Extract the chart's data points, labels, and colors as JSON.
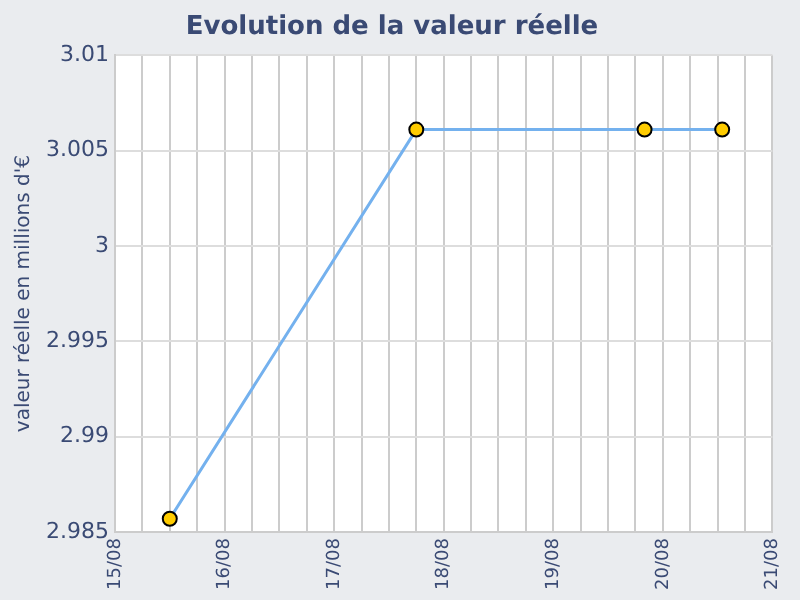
{
  "chart_data": {
    "type": "line",
    "title": "Evolution de la valeur réelle",
    "ylabel": "valeur réelle en millions d'€",
    "x": [
      "--08-15T12:00",
      "--08-17T18:00",
      "--08-19T20:00",
      "--08-20T13:00"
    ],
    "series": [
      {
        "color": "#74b1ee",
        "colors": [
          "#ffcc00",
          "#ffcc00",
          "#ffcc00",
          "#ffcc00"
        ],
        "values": [
          2.9857,
          3.0061,
          3.0061,
          3.0061
        ]
      }
    ],
    "xlim": [
      "--08-15",
      "--08-21"
    ],
    "xticks": [
      {
        "value": "--08-15",
        "label": "15/08"
      },
      {
        "value": "--08-15T06:00",
        "label": null
      },
      {
        "value": "--08-15T12:00",
        "label": null
      },
      {
        "value": "--08-15T18:00",
        "label": null
      },
      {
        "value": "--08-16",
        "label": "16/08"
      },
      {
        "value": "--08-16T06:00",
        "label": null
      },
      {
        "value": "--08-16T12:00",
        "label": null
      },
      {
        "value": "--08-16T18:00",
        "label": null
      },
      {
        "value": "--08-17",
        "label": "17/08"
      },
      {
        "value": "--08-17T06:00",
        "label": null
      },
      {
        "value": "--08-17T12:00",
        "label": null
      },
      {
        "value": "--08-17T18:00",
        "label": null
      },
      {
        "value": "--08-18",
        "label": "18/08"
      },
      {
        "value": "--08-18T06:00",
        "label": null
      },
      {
        "value": "--08-18T12:00",
        "label": null
      },
      {
        "value": "--08-18T18:00",
        "label": null
      },
      {
        "value": "--08-19",
        "label": "19/08"
      },
      {
        "value": "--08-19T06:00",
        "label": null
      },
      {
        "value": "--08-19T12:00",
        "label": null
      },
      {
        "value": "--08-19T18:00",
        "label": null
      },
      {
        "value": "--08-20",
        "label": "20/08"
      },
      {
        "value": "--08-20T06:00",
        "label": null
      },
      {
        "value": "--08-20T12:00",
        "label": null
      },
      {
        "value": "--08-20T18:00",
        "label": null
      },
      {
        "value": "--08-21",
        "label": "21/08"
      }
    ],
    "ylim": [
      2.985,
      3.01
    ],
    "yticks": [
      2.985,
      2.99,
      2.995,
      3,
      3.005,
      3.01
    ],
    "grid": true,
    "legend": false,
    "marker": "circle",
    "line_style": "solid"
  }
}
